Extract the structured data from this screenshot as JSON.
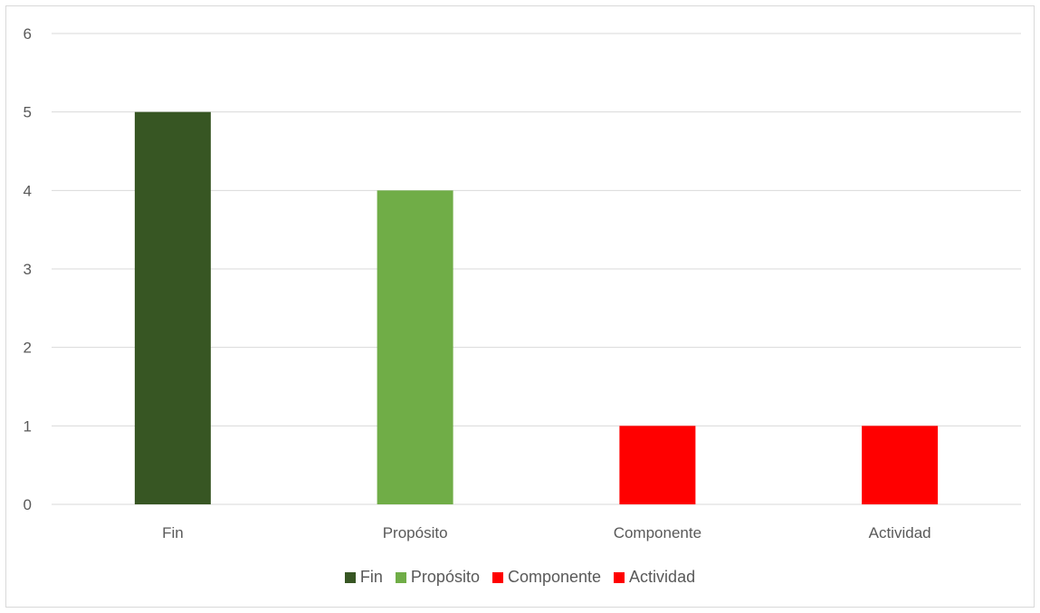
{
  "chart_data": {
    "type": "bar",
    "categories": [
      "Fin",
      "Propósito",
      "Componente",
      "Actividad"
    ],
    "values": [
      5,
      4,
      1,
      1
    ],
    "colors": [
      "#375623",
      "#70AD47",
      "#FF0000",
      "#FF0000"
    ],
    "title": "",
    "xlabel": "",
    "ylabel": "",
    "ylim": [
      0,
      6
    ],
    "yticks": [
      "0",
      "1",
      "2",
      "3",
      "4",
      "5",
      "6"
    ],
    "grid": true,
    "legend": {
      "placement": "bottom",
      "entries": [
        {
          "label": "Fin",
          "color": "#375623"
        },
        {
          "label": "Propósito",
          "color": "#70AD47"
        },
        {
          "label": "Componente",
          "color": "#FF0000"
        },
        {
          "label": "Actividad",
          "color": "#FF0000"
        }
      ]
    }
  }
}
